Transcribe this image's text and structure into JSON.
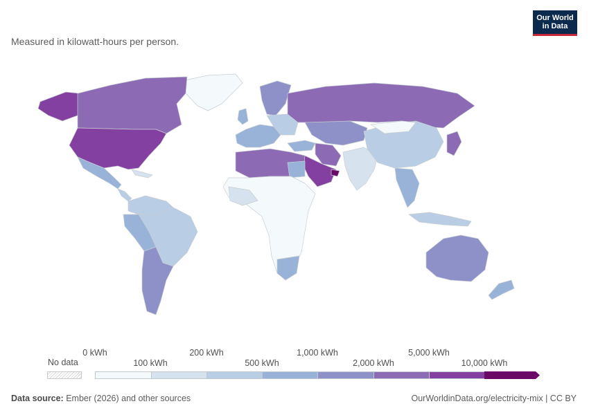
{
  "subtitle": "Measured in kilowatt-hours per person.",
  "logo": {
    "line1": "Our World",
    "line2": "in Data"
  },
  "legend": {
    "no_data_label": "No data",
    "labels_top": [
      "0 kWh",
      "200 kWh",
      "1,000 kWh",
      "5,000 kWh"
    ],
    "labels_bottom": [
      "100 kWh",
      "500 kWh",
      "2,000 kWh",
      "10,000 kWh"
    ],
    "bins": [
      {
        "color": "#f4f9fb"
      },
      {
        "color": "#d6e3ef"
      },
      {
        "color": "#b9cde4"
      },
      {
        "color": "#99b3d8"
      },
      {
        "color": "#8e91c8"
      },
      {
        "color": "#8c6ab4"
      },
      {
        "color": "#8440a0"
      },
      {
        "color": "#6a0a66"
      }
    ]
  },
  "colors": {
    "ocean": "#ffffff",
    "border": "#c7cdd4"
  },
  "footer": {
    "source_label": "Data source:",
    "source_text": "Ember (2026) and other sources",
    "url_text": "OurWorldinData.org/electricity-mix | CC BY"
  }
}
